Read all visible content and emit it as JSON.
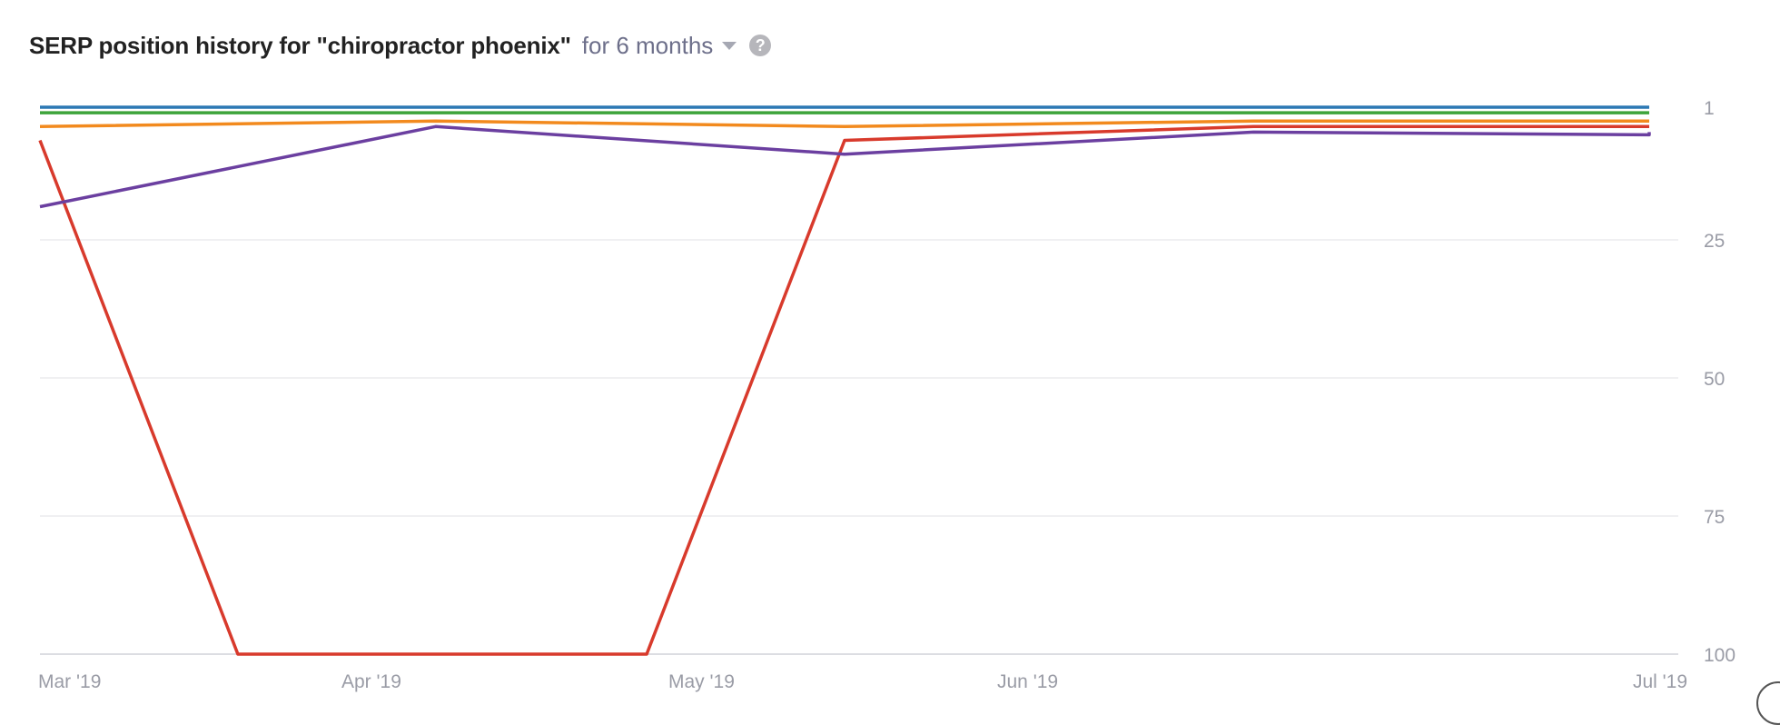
{
  "header": {
    "title": "SERP position history for \"chiropractor phoenix\"",
    "period": "for 6 months",
    "help": "?"
  },
  "chart_data": {
    "type": "line",
    "title": "SERP position history for \"chiropractor phoenix\"",
    "xlabel": "",
    "ylabel": "",
    "x_ticks": [
      "Mar '19",
      "Apr '19",
      "May '19",
      "Jun '19",
      "Jul '19"
    ],
    "y_ticks": [
      1,
      25,
      50,
      75,
      100
    ],
    "ylim": [
      1,
      100
    ],
    "y_inverted": true,
    "y_axis_position": "right",
    "grid": true,
    "legend": "none",
    "x_domain": [
      "2019-03-01",
      "2019-07-01"
    ],
    "series": [
      {
        "color": "#2b78b4",
        "points": [
          [
            "2019-03-01",
            1
          ],
          [
            "2019-07-01",
            1
          ]
        ]
      },
      {
        "color": "#3ea43b",
        "points": [
          [
            "2019-03-01",
            2
          ],
          [
            "2019-07-01",
            2
          ]
        ]
      },
      {
        "color": "#f28a1e",
        "points": [
          [
            "2019-03-01",
            4.5
          ],
          [
            "2019-03-31",
            3.5
          ],
          [
            "2019-05-01",
            4.5
          ],
          [
            "2019-06-01",
            3.5
          ],
          [
            "2019-07-01",
            3.5
          ]
        ]
      },
      {
        "color": "#d83a2c",
        "points": [
          [
            "2019-03-01",
            7
          ],
          [
            "2019-03-16",
            100
          ],
          [
            "2019-04-16",
            100
          ],
          [
            "2019-05-01",
            7
          ],
          [
            "2019-06-01",
            4.5
          ],
          [
            "2019-07-01",
            4.5
          ]
        ]
      },
      {
        "color": "#6b3fa0",
        "points": [
          [
            "2019-03-01",
            19
          ],
          [
            "2019-03-31",
            4.5
          ],
          [
            "2019-05-01",
            9.5
          ],
          [
            "2019-06-01",
            5.5
          ],
          [
            "2019-07-01",
            6
          ],
          [
            "2019-07-01",
            5.5
          ]
        ]
      }
    ]
  }
}
